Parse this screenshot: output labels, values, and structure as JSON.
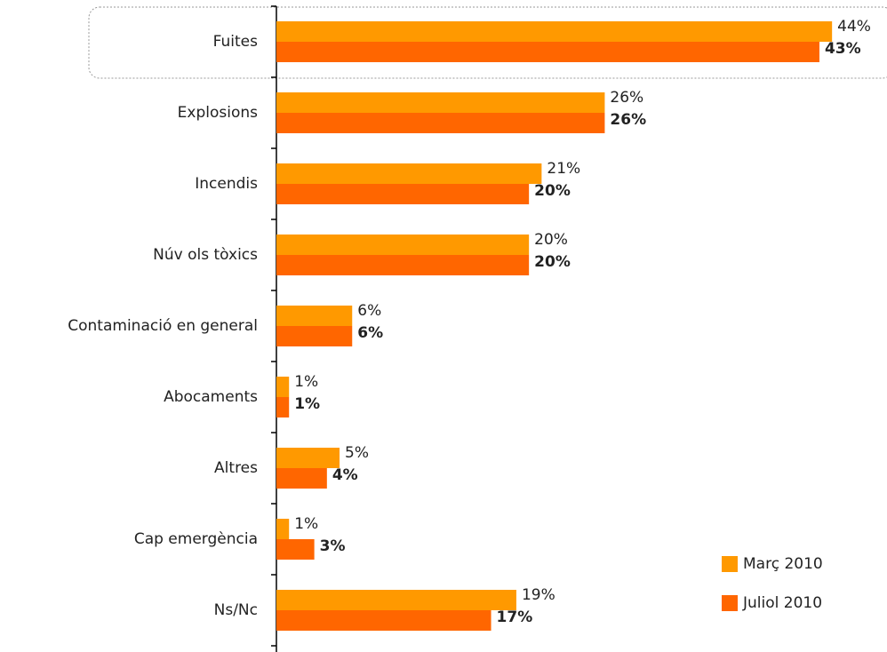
{
  "chart_data": {
    "type": "bar",
    "orientation": "horizontal",
    "categories": [
      "Fuites",
      "Explosions",
      "Incendis",
      "Núv ols tòxics",
      "Contaminació en general",
      "Abocaments",
      "Altres",
      "Cap emergència",
      "Ns/Nc"
    ],
    "series": [
      {
        "name": "Març 2010",
        "color": "#ff9900",
        "values": [
          44,
          26,
          21,
          20,
          6,
          1,
          5,
          1,
          19
        ],
        "value_labels": [
          "44%",
          "26%",
          "21%",
          "20%",
          "6%",
          "1%",
          "5%",
          "1%",
          "19%"
        ]
      },
      {
        "name": "Juliol 2010",
        "color": "#ff6600",
        "values": [
          43,
          26,
          20,
          20,
          6,
          1,
          4,
          3,
          17
        ],
        "value_labels": [
          "43%",
          "26%",
          "20%",
          "20%",
          "6%",
          "1%",
          "4%",
          "3%",
          "17%"
        ]
      }
    ],
    "xlim": [
      0,
      48
    ],
    "legend": "lower right"
  }
}
